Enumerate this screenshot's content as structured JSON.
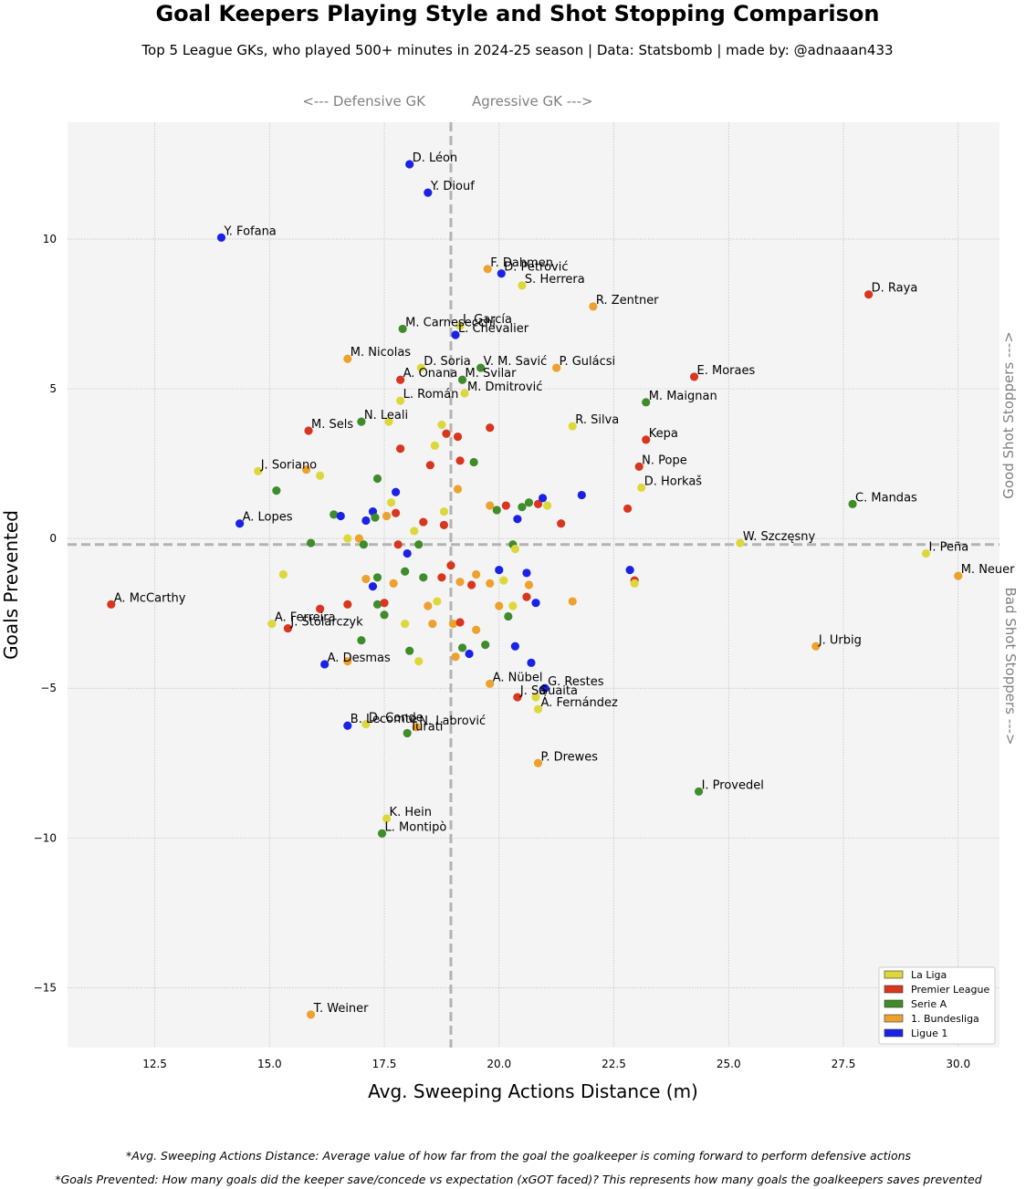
{
  "chart_data": {
    "type": "scatter",
    "title": "Goal Keepers Playing Style and Shot Stopping Comparison",
    "subtitle": "Top 5 League GKs, who played 500+ minutes in 2024-25 season  |  Data: Statsbomb  |  made by: @adnaaan433",
    "xlabel": "Avg. Sweeping Actions Distance (m)",
    "ylabel": "Goals Prevented",
    "xlim": [
      10.6,
      30.9
    ],
    "ylim": [
      -17.0,
      13.9
    ],
    "xticks": [
      "12.5",
      "15.0",
      "17.5",
      "20.0",
      "22.5",
      "25.0",
      "27.5",
      "30.0"
    ],
    "yticks": [
      "10",
      "5",
      "0",
      "−5",
      "−10",
      "−15"
    ],
    "xtick_values": [
      12.5,
      15.0,
      17.5,
      20.0,
      22.5,
      25.0,
      27.5,
      30.0
    ],
    "ytick_values": [
      10,
      5,
      0,
      -5,
      -10,
      -15
    ],
    "grid": true,
    "legend_position": "bottom-right",
    "reference_lines": {
      "x": 18.95,
      "y": -0.2
    },
    "guides": {
      "defensive": "<--- Defensive GK",
      "aggressive": "Agressive GK --->",
      "good": "Good Shot Stoppers --->",
      "bad": "Bad Shot Stoppers --->"
    },
    "leagues": [
      {
        "name": "La Liga",
        "color": "#dcd83c"
      },
      {
        "name": "Premier League",
        "color": "#d8361f"
      },
      {
        "name": "Serie A",
        "color": "#3e8c2a"
      },
      {
        "name": "1. Bundesliga",
        "color": "#eda12e"
      },
      {
        "name": "Ligue 1",
        "color": "#1a22e6"
      }
    ],
    "points": [
      {
        "label": "D. Léon",
        "x": 18.05,
        "y": 12.5,
        "league": "Ligue 1"
      },
      {
        "label": "Y. Diouf",
        "x": 18.45,
        "y": 11.55,
        "league": "Ligue 1"
      },
      {
        "label": "Y. Fofana",
        "x": 13.95,
        "y": 10.05,
        "league": "Ligue 1"
      },
      {
        "label": "F. Dahmen",
        "x": 19.75,
        "y": 9.0,
        "league": "1. Bundesliga"
      },
      {
        "label": "D. Petrović",
        "x": 20.05,
        "y": 8.85,
        "league": "Ligue 1"
      },
      {
        "label": "S. Herrera",
        "x": 20.5,
        "y": 8.45,
        "league": "La Liga"
      },
      {
        "label": "R. Zentner",
        "x": 22.05,
        "y": 7.75,
        "league": "1. Bundesliga"
      },
      {
        "label": "D. Raya",
        "x": 28.05,
        "y": 8.15,
        "league": "Premier League"
      },
      {
        "label": "M. Carnesecchi",
        "x": 17.9,
        "y": 7.0,
        "league": "Serie A"
      },
      {
        "label": "I. García",
        "x": 19.15,
        "y": 7.1,
        "league": "La Liga"
      },
      {
        "label": "L. Chevalier",
        "x": 19.05,
        "y": 6.8,
        "league": "Ligue 1"
      },
      {
        "label": "M. Nicolas",
        "x": 16.7,
        "y": 6.0,
        "league": "1. Bundesliga"
      },
      {
        "label": "D. Soria",
        "x": 18.3,
        "y": 5.7,
        "league": "La Liga"
      },
      {
        "label": "V. M. Savić",
        "x": 19.6,
        "y": 5.7,
        "league": "Serie A"
      },
      {
        "label": "P. Gulácsi",
        "x": 21.25,
        "y": 5.7,
        "league": "1. Bundesliga"
      },
      {
        "label": "A. Onana",
        "x": 17.85,
        "y": 5.3,
        "league": "Premier League"
      },
      {
        "label": "M. Svilar",
        "x": 19.2,
        "y": 5.3,
        "league": "Serie A"
      },
      {
        "label": "E. Moraes",
        "x": 24.25,
        "y": 5.4,
        "league": "Premier League"
      },
      {
        "label": "M. Dmitrović",
        "x": 19.25,
        "y": 4.85,
        "league": "La Liga"
      },
      {
        "label": "L. Román",
        "x": 17.85,
        "y": 4.6,
        "league": "La Liga"
      },
      {
        "label": "M. Maignan",
        "x": 23.2,
        "y": 4.55,
        "league": "Serie A"
      },
      {
        "label": "N. Leali",
        "x": 17.0,
        "y": 3.9,
        "league": "Serie A"
      },
      {
        "label": "M. Sels",
        "x": 15.85,
        "y": 3.6,
        "league": "Premier League"
      },
      {
        "label": "R. Silva",
        "x": 21.6,
        "y": 3.75,
        "league": "La Liga"
      },
      {
        "label": "Kepa",
        "x": 23.2,
        "y": 3.3,
        "league": "Premier League"
      },
      {
        "label": "N. Pope",
        "x": 23.05,
        "y": 2.4,
        "league": "Premier League"
      },
      {
        "label": "J. Soriano",
        "x": 14.75,
        "y": 2.25,
        "league": "La Liga"
      },
      {
        "label": "D. Horkaš",
        "x": 23.1,
        "y": 1.7,
        "league": "La Liga"
      },
      {
        "label": "C. Mandas",
        "x": 27.7,
        "y": 1.15,
        "league": "Serie A"
      },
      {
        "label": "A. Lopes",
        "x": 14.35,
        "y": 0.5,
        "league": "Ligue 1"
      },
      {
        "label": "W. Szczęsny",
        "x": 25.25,
        "y": -0.15,
        "league": "La Liga"
      },
      {
        "label": "I. Peña",
        "x": 29.3,
        "y": -0.5,
        "league": "La Liga"
      },
      {
        "label": "M. Neuer",
        "x": 30.0,
        "y": -1.25,
        "league": "1. Bundesliga"
      },
      {
        "label": "A. McCarthy",
        "x": 11.55,
        "y": -2.2,
        "league": "Premier League"
      },
      {
        "label": "A. Ferreira",
        "x": 15.05,
        "y": -2.85,
        "league": "La Liga"
      },
      {
        "label": "J. Stolarczyk",
        "x": 15.4,
        "y": -3.0,
        "league": "Premier League"
      },
      {
        "label": "J. Urbig",
        "x": 26.9,
        "y": -3.6,
        "league": "1. Bundesliga"
      },
      {
        "label": "A. Desmas",
        "x": 16.2,
        "y": -4.2,
        "league": "Ligue 1"
      },
      {
        "label": "A. Nübel",
        "x": 19.8,
        "y": -4.85,
        "league": "1. Bundesliga"
      },
      {
        "label": "G. Restes",
        "x": 21.0,
        "y": -5.0,
        "league": "Ligue 1"
      },
      {
        "label": "J. Sá",
        "x": 20.4,
        "y": -5.3,
        "league": "Premier League"
      },
      {
        "label": "Guaita",
        "x": 20.8,
        "y": -5.3,
        "league": "La Liga"
      },
      {
        "label": "Á. Fernández",
        "x": 20.85,
        "y": -5.7,
        "league": "La Liga"
      },
      {
        "label": "B. Lecomte",
        "x": 16.7,
        "y": -6.25,
        "league": "Ligue 1"
      },
      {
        "label": "D. Conde",
        "x": 17.1,
        "y": -6.2,
        "league": "La Liga"
      },
      {
        "label": "N. Labrović",
        "x": 18.2,
        "y": -6.3,
        "league": "1. Bundesliga"
      },
      {
        "label": "Turati",
        "x": 18.0,
        "y": -6.5,
        "league": "Serie A"
      },
      {
        "label": "P. Drewes",
        "x": 20.85,
        "y": -7.5,
        "league": "1. Bundesliga"
      },
      {
        "label": "I. Provedel",
        "x": 24.35,
        "y": -8.45,
        "league": "Serie A"
      },
      {
        "label": "K. Hein",
        "x": 17.55,
        "y": -9.35,
        "league": "La Liga"
      },
      {
        "label": "L. Montipò",
        "x": 17.45,
        "y": -9.85,
        "league": "Serie A"
      },
      {
        "label": "T. Weiner",
        "x": 15.9,
        "y": -15.9,
        "league": "1. Bundesliga"
      },
      {
        "x": 18.75,
        "y": 3.8,
        "league": "La Liga"
      },
      {
        "x": 18.85,
        "y": 3.5,
        "league": "Premier League"
      },
      {
        "x": 19.1,
        "y": 3.4,
        "league": "Premier League"
      },
      {
        "x": 19.8,
        "y": 3.7,
        "league": "Premier League"
      },
      {
        "x": 18.6,
        "y": 3.1,
        "league": "La Liga"
      },
      {
        "x": 17.85,
        "y": 3.0,
        "league": "Premier League"
      },
      {
        "x": 17.6,
        "y": 3.9,
        "league": "La Liga"
      },
      {
        "x": 18.5,
        "y": 2.45,
        "league": "Premier League"
      },
      {
        "x": 19.15,
        "y": 2.6,
        "league": "Premier League"
      },
      {
        "x": 19.45,
        "y": 2.55,
        "league": "Serie A"
      },
      {
        "x": 15.8,
        "y": 2.3,
        "league": "1. Bundesliga"
      },
      {
        "x": 16.1,
        "y": 2.1,
        "league": "La Liga"
      },
      {
        "x": 17.35,
        "y": 2.0,
        "league": "Serie A"
      },
      {
        "x": 15.15,
        "y": 1.6,
        "league": "Serie A"
      },
      {
        "x": 17.75,
        "y": 1.55,
        "league": "Ligue 1"
      },
      {
        "x": 19.1,
        "y": 1.65,
        "league": "1. Bundesliga"
      },
      {
        "x": 17.65,
        "y": 1.2,
        "league": "La Liga"
      },
      {
        "x": 19.8,
        "y": 1.1,
        "league": "1. Bundesliga"
      },
      {
        "x": 20.15,
        "y": 1.1,
        "league": "Premier League"
      },
      {
        "x": 19.95,
        "y": 0.95,
        "league": "Serie A"
      },
      {
        "x": 20.5,
        "y": 1.05,
        "league": "Serie A"
      },
      {
        "x": 20.65,
        "y": 1.2,
        "league": "Serie A"
      },
      {
        "x": 20.85,
        "y": 1.15,
        "league": "Premier League"
      },
      {
        "x": 20.95,
        "y": 1.35,
        "league": "Ligue 1"
      },
      {
        "x": 21.05,
        "y": 1.1,
        "league": "La Liga"
      },
      {
        "x": 21.8,
        "y": 1.45,
        "league": "Ligue 1"
      },
      {
        "x": 22.8,
        "y": 1.0,
        "league": "Premier League"
      },
      {
        "x": 17.25,
        "y": 0.9,
        "league": "Ligue 1"
      },
      {
        "x": 18.8,
        "y": 0.9,
        "league": "La Liga"
      },
      {
        "x": 17.3,
        "y": 0.7,
        "league": "Serie A"
      },
      {
        "x": 16.4,
        "y": 0.8,
        "league": "Serie A"
      },
      {
        "x": 16.55,
        "y": 0.75,
        "league": "Ligue 1"
      },
      {
        "x": 17.55,
        "y": 0.75,
        "league": "1. Bundesliga"
      },
      {
        "x": 17.75,
        "y": 0.85,
        "league": "Premier League"
      },
      {
        "x": 17.1,
        "y": 0.6,
        "league": "Ligue 1"
      },
      {
        "x": 18.35,
        "y": 0.55,
        "league": "Premier League"
      },
      {
        "x": 18.8,
        "y": 0.45,
        "league": "Premier League"
      },
      {
        "x": 20.4,
        "y": 0.65,
        "league": "Ligue 1"
      },
      {
        "x": 21.35,
        "y": 0.5,
        "league": "Premier League"
      },
      {
        "x": 18.15,
        "y": 0.25,
        "league": "La Liga"
      },
      {
        "x": 16.7,
        "y": 0.0,
        "league": "La Liga"
      },
      {
        "x": 16.95,
        "y": 0.0,
        "league": "1. Bundesliga"
      },
      {
        "x": 15.9,
        "y": -0.15,
        "league": "Serie A"
      },
      {
        "x": 17.8,
        "y": -0.2,
        "league": "Premier League"
      },
      {
        "x": 18.25,
        "y": -0.2,
        "league": "Serie A"
      },
      {
        "x": 17.05,
        "y": -0.2,
        "league": "Serie A"
      },
      {
        "x": 20.3,
        "y": -0.2,
        "league": "Serie A"
      },
      {
        "x": 20.35,
        "y": -0.35,
        "league": "La Liga"
      },
      {
        "x": 18.0,
        "y": -0.5,
        "league": "Ligue 1"
      },
      {
        "x": 18.95,
        "y": -0.9,
        "league": "Premier League"
      },
      {
        "x": 20.0,
        "y": -1.05,
        "league": "Ligue 1"
      },
      {
        "x": 20.6,
        "y": -1.15,
        "league": "Ligue 1"
      },
      {
        "x": 22.85,
        "y": -1.05,
        "league": "Ligue 1"
      },
      {
        "x": 17.95,
        "y": -1.1,
        "league": "Serie A"
      },
      {
        "x": 18.35,
        "y": -1.3,
        "league": "Serie A"
      },
      {
        "x": 18.75,
        "y": -1.3,
        "league": "Premier League"
      },
      {
        "x": 19.5,
        "y": -1.2,
        "league": "1. Bundesliga"
      },
      {
        "x": 15.3,
        "y": -1.2,
        "league": "La Liga"
      },
      {
        "x": 17.1,
        "y": -1.35,
        "league": "1. Bundesliga"
      },
      {
        "x": 17.35,
        "y": -1.3,
        "league": "Serie A"
      },
      {
        "x": 17.7,
        "y": -1.5,
        "league": "1. Bundesliga"
      },
      {
        "x": 19.15,
        "y": -1.45,
        "league": "1. Bundesliga"
      },
      {
        "x": 19.4,
        "y": -1.55,
        "league": "Premier League"
      },
      {
        "x": 19.8,
        "y": -1.5,
        "league": "1. Bundesliga"
      },
      {
        "x": 20.1,
        "y": -1.4,
        "league": "La Liga"
      },
      {
        "x": 20.65,
        "y": -1.55,
        "league": "1. Bundesliga"
      },
      {
        "x": 22.95,
        "y": -1.4,
        "league": "Premier League"
      },
      {
        "x": 22.95,
        "y": -1.5,
        "league": "La Liga"
      },
      {
        "x": 17.25,
        "y": -1.6,
        "league": "Ligue 1"
      },
      {
        "x": 20.6,
        "y": -1.95,
        "league": "Premier League"
      },
      {
        "x": 20.8,
        "y": -2.15,
        "league": "Ligue 1"
      },
      {
        "x": 21.6,
        "y": -2.1,
        "league": "1. Bundesliga"
      },
      {
        "x": 16.7,
        "y": -2.2,
        "league": "Premier League"
      },
      {
        "x": 17.35,
        "y": -2.2,
        "league": "Serie A"
      },
      {
        "x": 17.5,
        "y": -2.15,
        "league": "Premier League"
      },
      {
        "x": 18.45,
        "y": -2.25,
        "league": "1. Bundesliga"
      },
      {
        "x": 18.65,
        "y": -2.1,
        "league": "La Liga"
      },
      {
        "x": 20.0,
        "y": -2.25,
        "league": "1. Bundesliga"
      },
      {
        "x": 20.3,
        "y": -2.25,
        "league": "La Liga"
      },
      {
        "x": 16.1,
        "y": -2.35,
        "league": "Premier League"
      },
      {
        "x": 17.5,
        "y": -2.55,
        "league": "Serie A"
      },
      {
        "x": 20.2,
        "y": -2.6,
        "league": "Serie A"
      },
      {
        "x": 17.95,
        "y": -2.85,
        "league": "La Liga"
      },
      {
        "x": 18.55,
        "y": -2.85,
        "league": "1. Bundesliga"
      },
      {
        "x": 19.0,
        "y": -2.85,
        "league": "1. Bundesliga"
      },
      {
        "x": 19.15,
        "y": -2.8,
        "league": "Premier League"
      },
      {
        "x": 19.5,
        "y": -3.05,
        "league": "1. Bundesliga"
      },
      {
        "x": 17.0,
        "y": -3.4,
        "league": "Serie A"
      },
      {
        "x": 19.2,
        "y": -3.65,
        "league": "Serie A"
      },
      {
        "x": 19.35,
        "y": -3.85,
        "league": "Ligue 1"
      },
      {
        "x": 19.7,
        "y": -3.55,
        "league": "Serie A"
      },
      {
        "x": 20.35,
        "y": -3.6,
        "league": "Ligue 1"
      },
      {
        "x": 18.05,
        "y": -3.75,
        "league": "Serie A"
      },
      {
        "x": 19.05,
        "y": -3.95,
        "league": "1. Bundesliga"
      },
      {
        "x": 16.7,
        "y": -4.1,
        "league": "1. Bundesliga"
      },
      {
        "x": 18.25,
        "y": -4.1,
        "league": "La Liga"
      },
      {
        "x": 20.7,
        "y": -4.15,
        "league": "Ligue 1"
      }
    ]
  },
  "footnotes": {
    "line1": "*Avg. Sweeping Actions Distance: Average value of how far from the goal the goalkeeper is coming forward to perform defensive actions",
    "line2": "*Goals Prevented: How many goals did the keeper save/concede vs expectation (xGOT faced)? This represents how many goals the goalkeepers saves prevented"
  }
}
